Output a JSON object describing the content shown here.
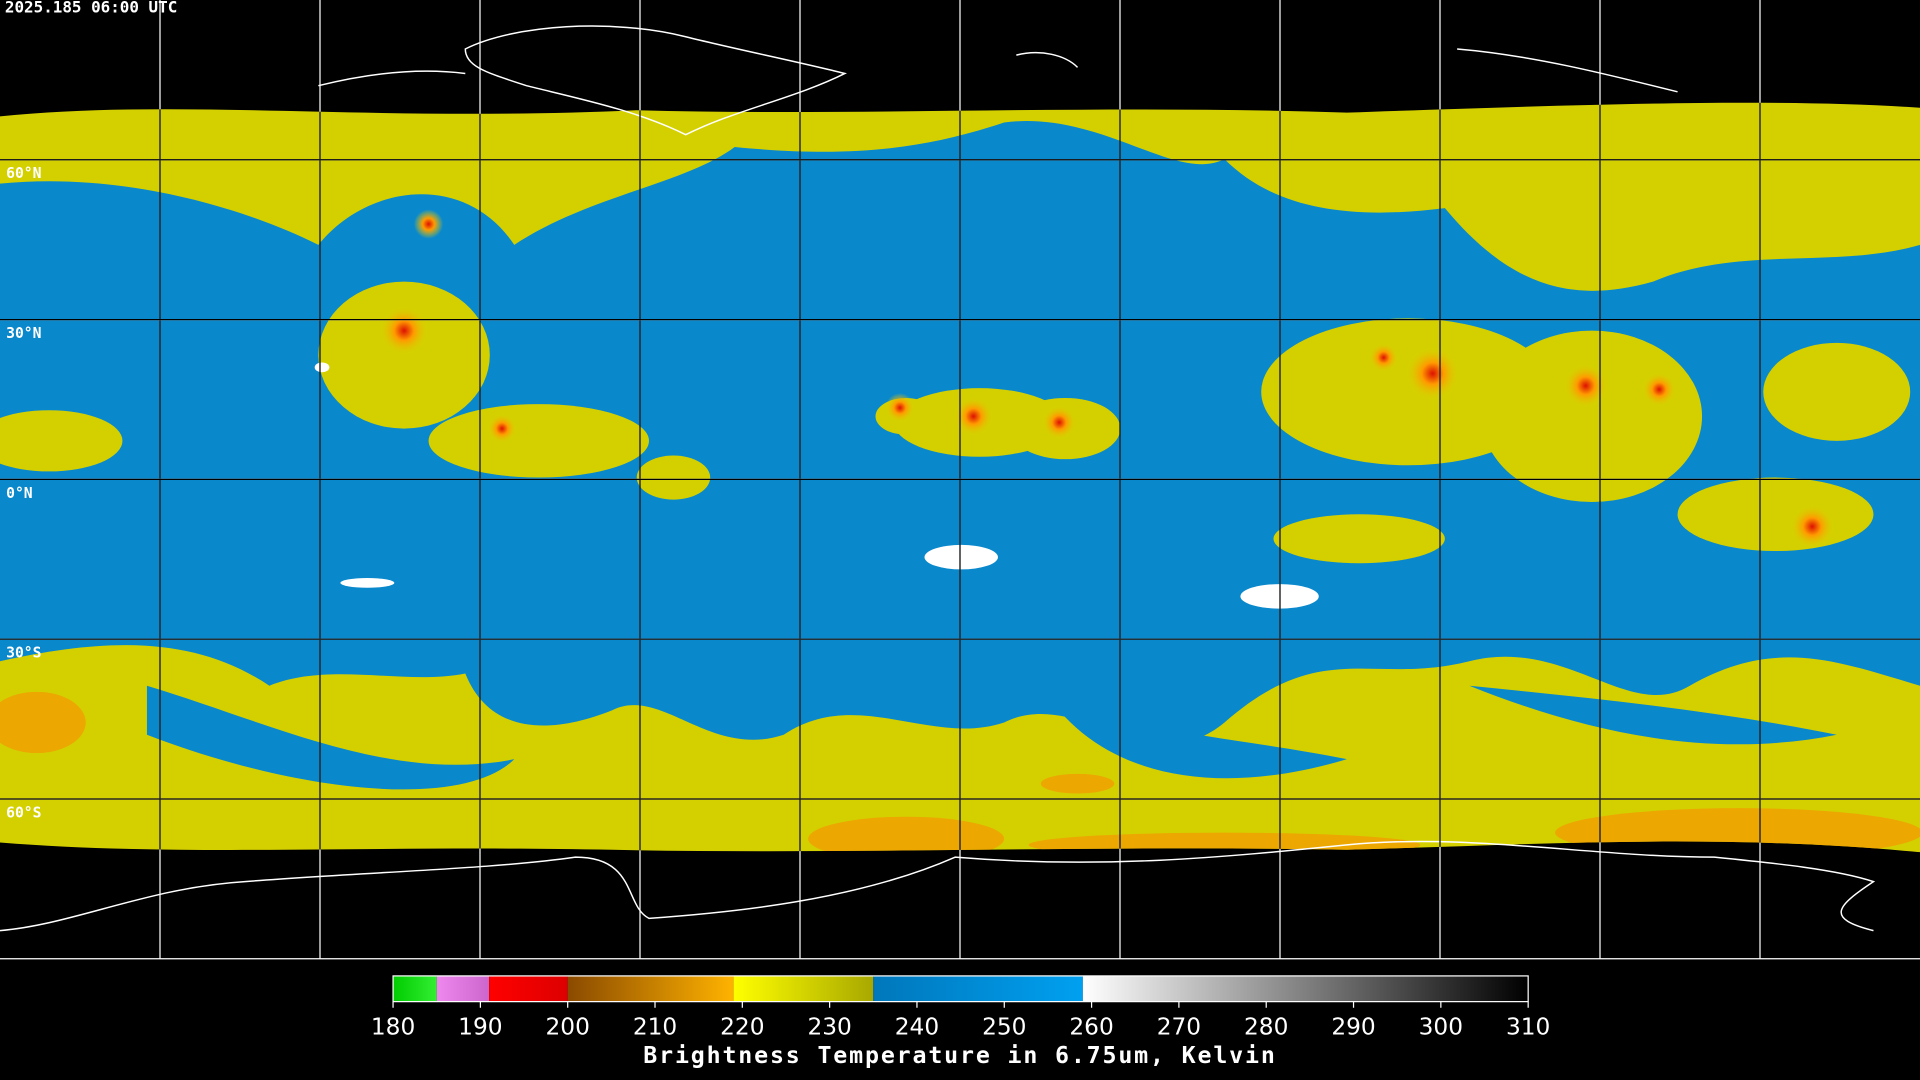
{
  "map": {
    "timestamp": "2025.185 06:00 UTC",
    "lat_labels": [
      "60°N",
      "30°N",
      "0°N",
      "30°S",
      "60°S"
    ]
  },
  "colorbar": {
    "title": "Brightness Temperature in 6.75um, Kelvin",
    "range": [
      180,
      310
    ],
    "ticks": [
      180,
      190,
      200,
      210,
      220,
      230,
      240,
      250,
      260,
      270,
      280,
      290,
      300,
      310
    ],
    "segments": [
      {
        "range": [
          180,
          185
        ],
        "colors": [
          "#00cc00",
          "#33ee33"
        ]
      },
      {
        "range": [
          185,
          191
        ],
        "colors": [
          "#ee88ee",
          "#cc66cc"
        ]
      },
      {
        "range": [
          191,
          200
        ],
        "colors": [
          "#ff0000",
          "#dd0000"
        ]
      },
      {
        "range": [
          200,
          219
        ],
        "colors": [
          "#8a4a00",
          "#ffb300"
        ]
      },
      {
        "range": [
          219,
          235
        ],
        "colors": [
          "#ffff00",
          "#a8a800"
        ]
      },
      {
        "range": [
          235,
          259
        ],
        "colors": [
          "#0077bb",
          "#00a0f0"
        ]
      },
      {
        "range": [
          259,
          310
        ],
        "colors": [
          "#ffffff",
          "#000000"
        ]
      }
    ]
  }
}
